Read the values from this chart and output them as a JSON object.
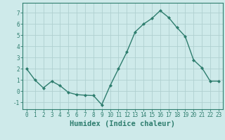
{
  "x": [
    0,
    1,
    2,
    3,
    4,
    5,
    6,
    7,
    8,
    9,
    10,
    11,
    12,
    13,
    14,
    15,
    16,
    17,
    18,
    19,
    20,
    21,
    22,
    23
  ],
  "y": [
    2.0,
    1.0,
    0.3,
    0.9,
    0.5,
    -0.1,
    -0.3,
    -0.35,
    -0.38,
    -1.2,
    0.5,
    2.0,
    3.5,
    5.3,
    6.0,
    6.5,
    7.2,
    6.6,
    5.7,
    4.9,
    2.8,
    2.1,
    0.9,
    0.9
  ],
  "line_color": "#2e7d6e",
  "marker": "D",
  "marker_size": 2.0,
  "bg_color": "#ceeaea",
  "grid_color": "#b0d0d0",
  "xlabel": "Humidex (Indice chaleur)",
  "xlim": [
    -0.5,
    23.5
  ],
  "ylim": [
    -1.6,
    7.9
  ],
  "yticks": [
    -1,
    0,
    1,
    2,
    3,
    4,
    5,
    6,
    7
  ],
  "xticks": [
    0,
    1,
    2,
    3,
    4,
    5,
    6,
    7,
    8,
    9,
    10,
    11,
    12,
    13,
    14,
    15,
    16,
    17,
    18,
    19,
    20,
    21,
    22,
    23
  ],
  "tick_label_fontsize": 5.5,
  "xlabel_fontsize": 7.5,
  "label_color": "#2e7d6e",
  "axis_color": "#2e7d6e",
  "linewidth": 1.0
}
